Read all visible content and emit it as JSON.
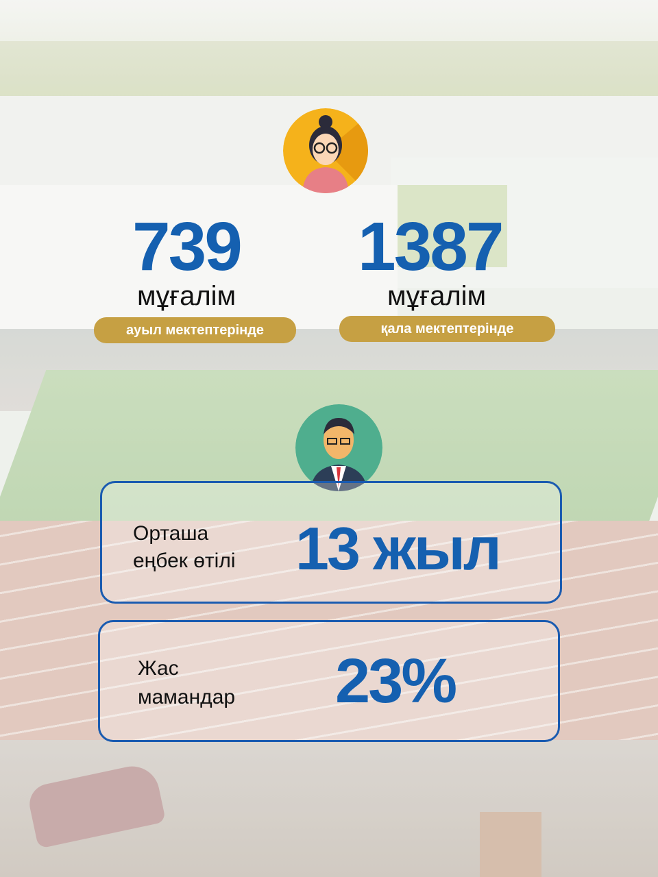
{
  "stats": {
    "rural": {
      "value": "739",
      "unit": "мұғалім",
      "label": "ауыл мектептерінде"
    },
    "urban": {
      "value": "1387",
      "unit": "мұғалім",
      "label": "қала мектептерінде"
    }
  },
  "experience": {
    "label_line1": "Орташа",
    "label_line2": "еңбек өтілі",
    "value": "13 жыл"
  },
  "young": {
    "label_line1": "Жас",
    "label_line2": "мамандар",
    "value": "23%"
  },
  "icons": {
    "top": "female-teacher-icon",
    "middle": "male-teacher-icon"
  },
  "colors": {
    "accent_blue": "#1560b0",
    "badge_gold": "#c6a043",
    "box_border": "#1a5bb0"
  }
}
